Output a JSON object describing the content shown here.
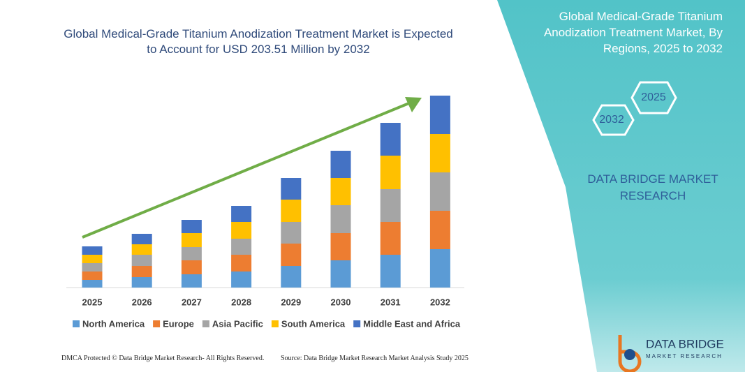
{
  "chart_data": {
    "type": "bar",
    "stacked": true,
    "title": "Global Medical-Grade Titanium Anodization Treatment Market is Expected to Account for USD 203.51 Million by 2032",
    "categories": [
      "2025",
      "2026",
      "2027",
      "2028",
      "2029",
      "2030",
      "2031",
      "2032"
    ],
    "series": [
      {
        "name": "North America",
        "color": "#5b9bd5",
        "values": [
          11,
          15,
          19,
          23,
          31,
          39,
          47,
          55
        ]
      },
      {
        "name": "Europe",
        "color": "#ed7d31",
        "values": [
          12,
          16,
          20,
          24,
          32,
          39,
          47,
          55
        ]
      },
      {
        "name": "Asia Pacific",
        "color": "#a5a5a5",
        "values": [
          12,
          16,
          19,
          23,
          31,
          40,
          47,
          55
        ]
      },
      {
        "name": "South America",
        "color": "#ffc000",
        "values": [
          12,
          15,
          20,
          24,
          32,
          39,
          48,
          55
        ]
      },
      {
        "name": "Middle East and Africa",
        "color": "#4472c4",
        "values": [
          12,
          15,
          19,
          23,
          31,
          39,
          47,
          55
        ]
      }
    ]
  },
  "panel": {
    "title": "Global Medical-Grade Titanium Anodization Treatment Market, By Regions, 2025 to 2032",
    "hex_labels": [
      "2025",
      "2032"
    ],
    "brand": "DATA BRIDGE MARKET RESEARCH",
    "logo": {
      "name": "DATA BRIDGE",
      "tagline": "MARKET RESEARCH"
    }
  },
  "footer": {
    "left": "DMCA Protected © Data Bridge Market Research- All Rights Reserved.",
    "right": "Source: Data Bridge Market Research  Market Analysis Study 2025"
  }
}
